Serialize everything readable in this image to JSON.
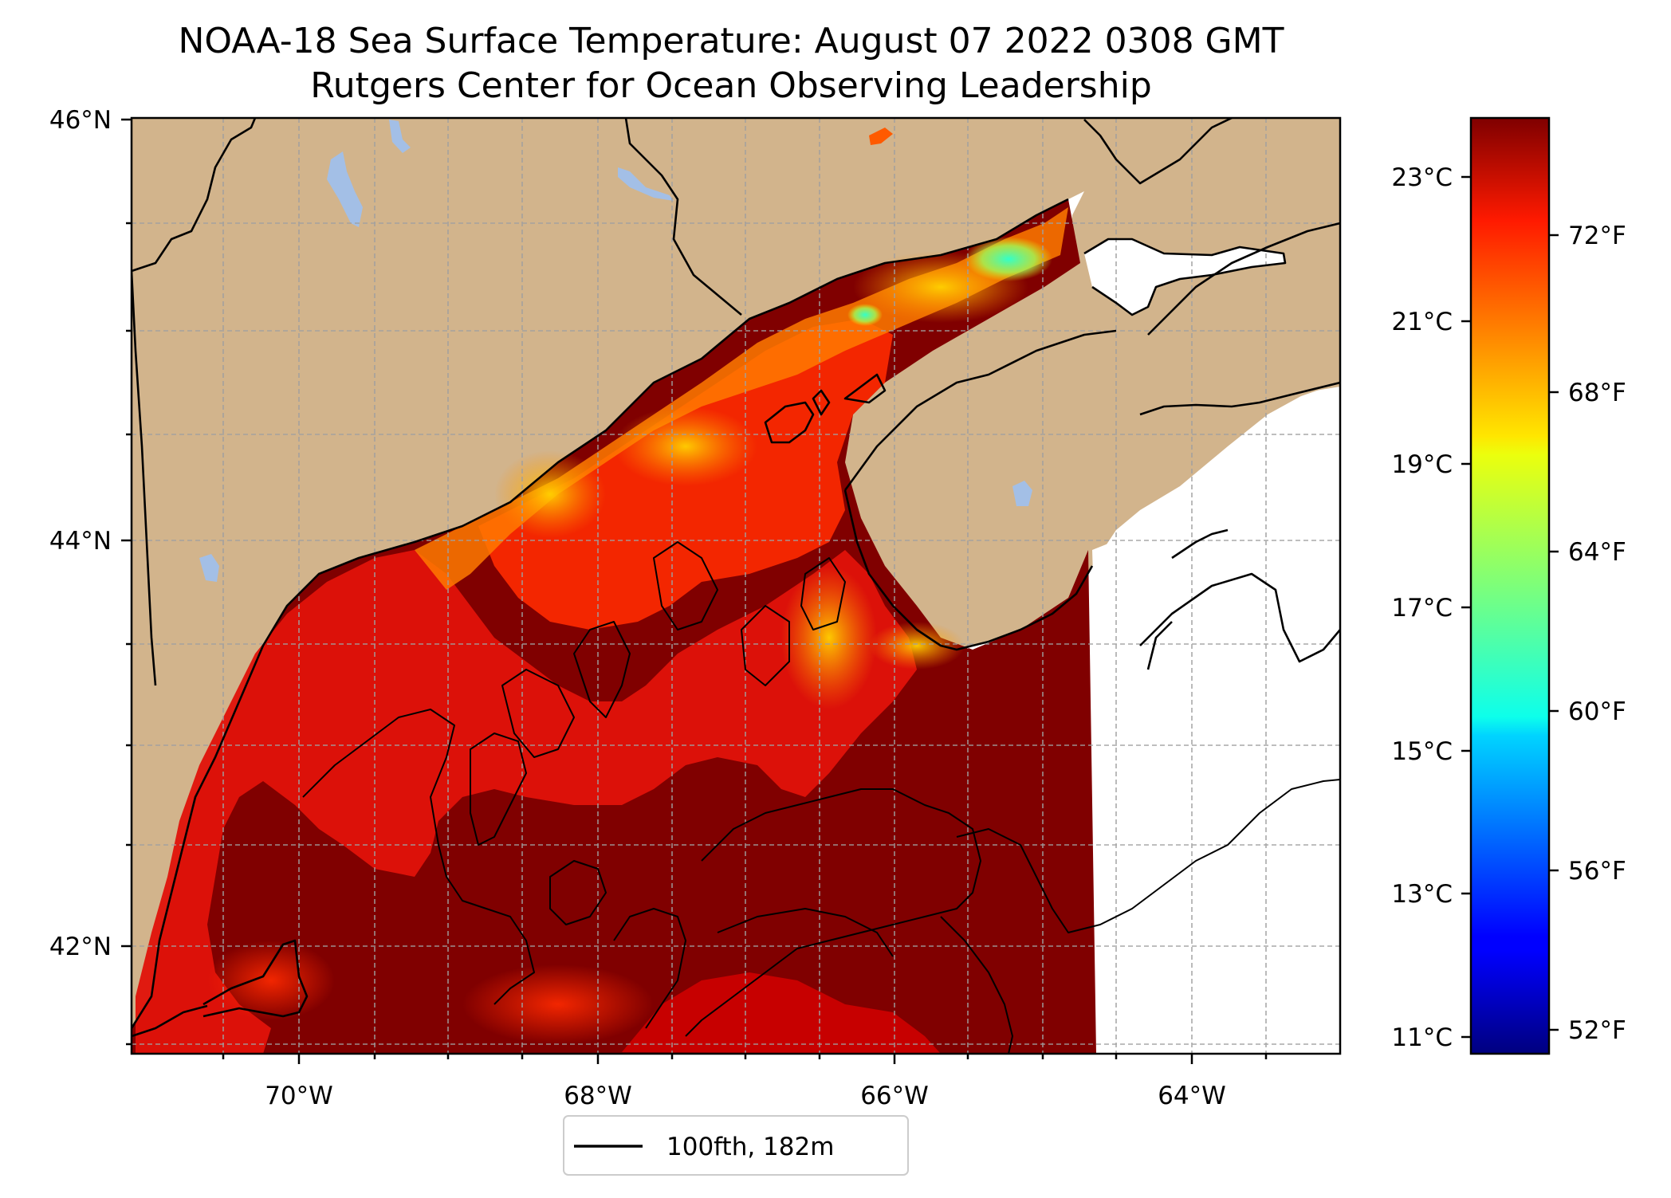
{
  "title_line1": "NOAA-18 Sea Surface Temperature: August 07 2022 0308 GMT",
  "title_line2": "Rutgers Center for Ocean Observing Leadership",
  "map": {
    "lon_ticks": [
      "70°W",
      "68°W",
      "66°W",
      "64°W"
    ],
    "lat_ticks": [
      "46°N",
      "44°N",
      "42°N"
    ],
    "gridlines": true,
    "colors": {
      "land": "#d2b48c",
      "lakes": "#a3bfe6",
      "no_data": "#ffffff",
      "coastline": "#000000",
      "isobath": "#000000"
    }
  },
  "legend": {
    "isobath_label": "100fth, 182m",
    "placement": "below-map"
  },
  "colorbar": {
    "celsius_ticks": [
      "23°C",
      "21°C",
      "19°C",
      "17°C",
      "15°C",
      "13°C",
      "11°C"
    ],
    "fahrenheit_ticks": [
      "72°F",
      "68°F",
      "64°F",
      "60°F",
      "56°F",
      "52°F"
    ],
    "colormap": "jet",
    "range_celsius": [
      10.8,
      24.0
    ]
  }
}
